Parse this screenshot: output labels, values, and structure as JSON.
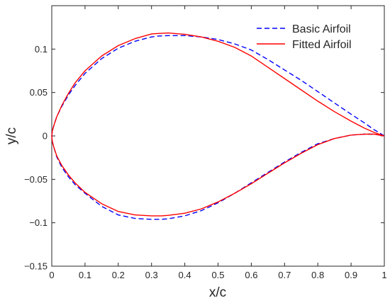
{
  "chart_data": {
    "type": "line",
    "xlabel": "x/c",
    "ylabel": "y/c",
    "xlim": [
      0,
      1
    ],
    "ylim": [
      -0.15,
      0.15
    ],
    "x_ticks": [
      0,
      0.1,
      0.2,
      0.3,
      0.4,
      0.5,
      0.6,
      0.7,
      0.8,
      0.9,
      1
    ],
    "x_tick_labels": [
      "0",
      "0.1",
      "0.2",
      "0.3",
      "0.4",
      "0.5",
      "0.6",
      "0.7",
      "0.8",
      "0.9",
      "1"
    ],
    "y_ticks": [
      -0.15,
      -0.1,
      -0.05,
      0,
      0.05,
      0.1
    ],
    "y_tick_labels": [
      "−0.15",
      "−0.1",
      "−0.05",
      "0",
      "0.05",
      "0.1"
    ],
    "grid": false,
    "legend_position": "top-right",
    "series": [
      {
        "name": "Basic Airfoil",
        "color": "#0000ff",
        "line_style": "dashed",
        "x": [
          1.0,
          0.97,
          0.94,
          0.9,
          0.85,
          0.8,
          0.75,
          0.7,
          0.65,
          0.6,
          0.55,
          0.5,
          0.45,
          0.4,
          0.35,
          0.32,
          0.3,
          0.25,
          0.2,
          0.15,
          0.1,
          0.07,
          0.05,
          0.03,
          0.015,
          0.007,
          0.002,
          0.0,
          0.002,
          0.007,
          0.015,
          0.03,
          0.05,
          0.07,
          0.1,
          0.15,
          0.2,
          0.25,
          0.3,
          0.33,
          0.35,
          0.4,
          0.45,
          0.5,
          0.55,
          0.6,
          0.65,
          0.7,
          0.75,
          0.8,
          0.85,
          0.9,
          0.94,
          0.97,
          1.0
        ],
        "y": [
          0.0,
          0.007,
          0.015,
          0.025,
          0.038,
          0.051,
          0.064,
          0.076,
          0.088,
          0.099,
          0.106,
          0.111,
          0.114,
          0.1155,
          0.1155,
          0.115,
          0.114,
          0.109,
          0.101,
          0.089,
          0.072,
          0.058,
          0.047,
          0.034,
          0.022,
          0.013,
          0.006,
          0.0,
          -0.007,
          -0.014,
          -0.024,
          -0.036,
          -0.047,
          -0.056,
          -0.066,
          -0.081,
          -0.091,
          -0.095,
          -0.096,
          -0.096,
          -0.0955,
          -0.092,
          -0.086,
          -0.077,
          -0.066,
          -0.054,
          -0.042,
          -0.03,
          -0.019,
          -0.009,
          -0.003,
          0.001,
          0.002,
          0.002,
          0.0
        ]
      },
      {
        "name": "Fitted Airfoil",
        "color": "#ff0000",
        "line_style": "solid",
        "x": [
          1.0,
          0.97,
          0.94,
          0.9,
          0.85,
          0.8,
          0.75,
          0.7,
          0.65,
          0.6,
          0.55,
          0.5,
          0.45,
          0.4,
          0.35,
          0.32,
          0.3,
          0.25,
          0.2,
          0.15,
          0.1,
          0.07,
          0.05,
          0.03,
          0.015,
          0.007,
          0.002,
          0.0,
          0.002,
          0.007,
          0.015,
          0.03,
          0.05,
          0.07,
          0.1,
          0.15,
          0.2,
          0.25,
          0.3,
          0.33,
          0.35,
          0.4,
          0.45,
          0.5,
          0.55,
          0.6,
          0.65,
          0.7,
          0.75,
          0.8,
          0.85,
          0.9,
          0.94,
          0.97,
          1.0
        ],
        "y": [
          0.0,
          0.004,
          0.009,
          0.017,
          0.028,
          0.04,
          0.053,
          0.066,
          0.079,
          0.092,
          0.102,
          0.109,
          0.114,
          0.117,
          0.1185,
          0.118,
          0.1175,
          0.112,
          0.104,
          0.092,
          0.075,
          0.061,
          0.049,
          0.035,
          0.022,
          0.013,
          0.006,
          0.0,
          -0.007,
          -0.014,
          -0.023,
          -0.034,
          -0.045,
          -0.054,
          -0.065,
          -0.078,
          -0.087,
          -0.091,
          -0.092,
          -0.092,
          -0.0915,
          -0.089,
          -0.084,
          -0.076,
          -0.066,
          -0.055,
          -0.043,
          -0.031,
          -0.02,
          -0.01,
          -0.003,
          0.001,
          0.002,
          0.002,
          0.0
        ]
      }
    ]
  }
}
